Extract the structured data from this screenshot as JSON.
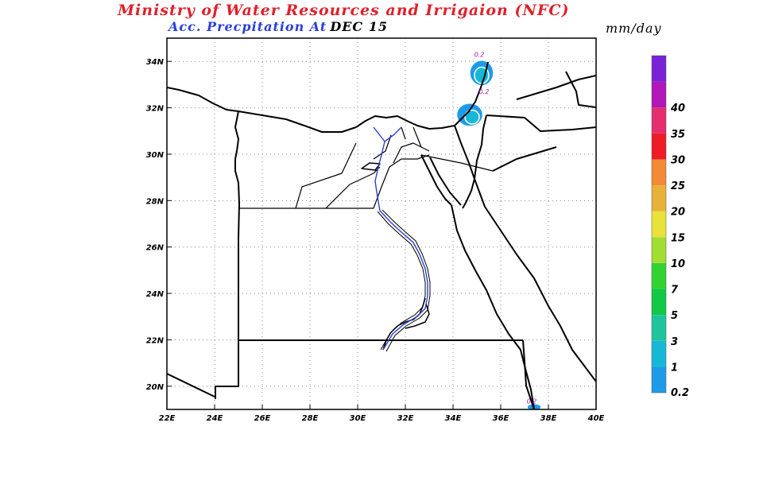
{
  "header": {
    "title": "Ministry of Water Resources and Irrigaion (NFC)",
    "subtitle": "Acc. Precpitation  At",
    "date": "DEC 15",
    "units": "mm/day"
  },
  "map": {
    "lon_range": [
      22,
      40
    ],
    "lat_range": [
      19,
      35
    ],
    "lon_ticks": [
      "22E",
      "24E",
      "26E",
      "28E",
      "30E",
      "32E",
      "34E",
      "36E",
      "38E",
      "40E"
    ],
    "lat_ticks": [
      "20N",
      "22N",
      "24N",
      "26N",
      "28N",
      "30N",
      "32N",
      "34N"
    ],
    "grid": "dotted",
    "contour_labels": [
      {
        "text": "0.2",
        "lon": 35.1,
        "lat": 34.2
      },
      {
        "text": "0.2",
        "lon": 35.3,
        "lat": 32.6
      },
      {
        "text": "0.2",
        "lon": 37.3,
        "lat": 19.25
      }
    ],
    "precip_patches": [
      {
        "level": "0.2",
        "lon": 35.2,
        "lat": 33.5,
        "rlon": 0.5,
        "rlat": 0.55
      },
      {
        "level": "0.2",
        "lon": 34.7,
        "lat": 31.7,
        "rlon": 0.55,
        "rlat": 0.5
      },
      {
        "level": "1",
        "lon": 35.2,
        "lat": 33.4,
        "rlon": 0.3,
        "rlat": 0.35
      },
      {
        "level": "1",
        "lon": 34.8,
        "lat": 31.6,
        "rlon": 0.3,
        "rlat": 0.3
      },
      {
        "level": "0.2",
        "lon": 37.4,
        "lat": 19.1,
        "rlon": 0.3,
        "rlat": 0.15
      }
    ]
  },
  "colorbar": {
    "levels": [
      "0.2",
      "1",
      "3",
      "5",
      "7",
      "10",
      "15",
      "20",
      "25",
      "30",
      "35",
      "40"
    ],
    "colors": [
      "#1e9be8",
      "#16b8d8",
      "#20c49c",
      "#12c847",
      "#33d233",
      "#a2dd33",
      "#e8e23a",
      "#e8b23a",
      "#f28a36",
      "#ee1c25",
      "#e62e6e",
      "#b016b8",
      "#7a22d8"
    ]
  }
}
